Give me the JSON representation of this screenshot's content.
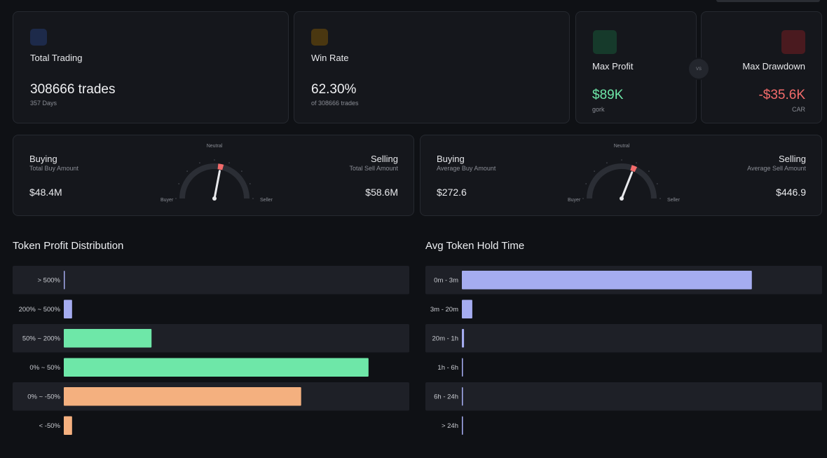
{
  "stats": [
    {
      "label": "Total Trading",
      "value": "308666 trades",
      "sub": "357 Days"
    },
    {
      "label": "Win Rate",
      "value": "62.30%",
      "sub": "of 308666 trades"
    }
  ],
  "profit": {
    "label": "Max Profit",
    "value": "$89K",
    "token": "gork"
  },
  "vs": "vs",
  "drawdown": {
    "label": "Max Drawdown",
    "value": "-$35.6K",
    "token": "CAR"
  },
  "gauges": [
    {
      "left_title": "Buying",
      "left_sub": "Total Buy Amount",
      "left_value": "$48.4M",
      "right_title": "Selling",
      "right_sub": "Total Sell Amount",
      "right_value": "$58.6M",
      "top": "Neutral",
      "buyer": "Buyer",
      "seller": "Seller",
      "needle": 0.56,
      "range": [
        0,
        1
      ]
    },
    {
      "left_title": "Buying",
      "left_sub": "Average Buy Amount",
      "left_value": "$272.6",
      "right_title": "Selling",
      "right_sub": "Average Sell Amount",
      "right_value": "$446.9",
      "top": "Neutral",
      "buyer": "Buyer",
      "seller": "Seller",
      "needle": 0.62,
      "range": [
        0,
        1
      ]
    }
  ],
  "chart_data": [
    {
      "type": "bar",
      "orientation": "horizontal",
      "title": "Token Profit Distribution",
      "categories": [
        "> 500%",
        "200% ~ 500%",
        "50% ~ 200%",
        "0% ~ 50%",
        "0% ~ -50%",
        "< -50%"
      ],
      "values": [
        0.3,
        2.4,
        25.4,
        88.2,
        68.7,
        2.4
      ],
      "colors": [
        "#a5acf0",
        "#a5acf0",
        "#6ee7a8",
        "#6ee7a8",
        "#f4b07f",
        "#f4b07f"
      ],
      "xlim": [
        0,
        100
      ]
    },
    {
      "type": "bar",
      "orientation": "horizontal",
      "title": "Avg Token Hold Time",
      "categories": [
        "0m - 3m",
        "3m - 20m",
        "20m - 1h",
        "1h - 6h",
        "6h - 24h",
        "> 24h"
      ],
      "values": [
        80.5,
        2.9,
        0.6,
        0.3,
        0.3,
        0.3
      ],
      "colors": [
        "#a5acf0",
        "#a5acf0",
        "#a5acf0",
        "#a5acf0",
        "#a5acf0",
        "#a5acf0"
      ],
      "xlim": [
        0,
        100
      ]
    }
  ]
}
